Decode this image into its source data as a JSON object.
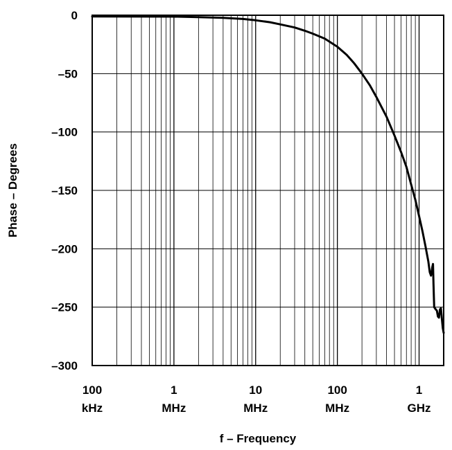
{
  "chart_data": {
    "type": "line",
    "title": "",
    "xlabel": "f – Frequency",
    "ylabel": "Phase – Degrees",
    "xscale": "log",
    "xlim_hz": [
      100000,
      2000000000
    ],
    "ylim": [
      -300,
      0
    ],
    "grid": true,
    "legend": "none",
    "x_ticks": [
      {
        "value": 100000,
        "line1": "100",
        "line2": "kHz"
      },
      {
        "value": 1000000,
        "line1": "1",
        "line2": "MHz"
      },
      {
        "value": 10000000,
        "line1": "10",
        "line2": "MHz"
      },
      {
        "value": 100000000,
        "line1": "100",
        "line2": "MHz"
      },
      {
        "value": 1000000000,
        "line1": "1",
        "line2": "GHz"
      }
    ],
    "y_ticks": [
      {
        "value": 0,
        "label": "0"
      },
      {
        "value": -50,
        "label": "–50"
      },
      {
        "value": -100,
        "label": "–100"
      },
      {
        "value": -150,
        "label": "–150"
      },
      {
        "value": -200,
        "label": "–200"
      },
      {
        "value": -250,
        "label": "–250"
      },
      {
        "value": -300,
        "label": "–300"
      }
    ],
    "series": [
      {
        "line_color": "#000000",
        "points": [
          [
            100000,
            -1.0
          ],
          [
            1000000,
            -1.2
          ],
          [
            2000000,
            -1.6
          ],
          [
            4000000,
            -2.2
          ],
          [
            7000000,
            -3.2
          ],
          [
            10000000,
            -4.3
          ],
          [
            15000000,
            -6.0
          ],
          [
            20000000,
            -7.8
          ],
          [
            30000000,
            -10.5
          ],
          [
            40000000,
            -13.3
          ],
          [
            50000000,
            -15.8
          ],
          [
            70000000,
            -20
          ],
          [
            100000000,
            -27
          ],
          [
            130000000,
            -34
          ],
          [
            160000000,
            -41
          ],
          [
            200000000,
            -50
          ],
          [
            250000000,
            -60
          ],
          [
            300000000,
            -70
          ],
          [
            400000000,
            -87
          ],
          [
            500000000,
            -103
          ],
          [
            600000000,
            -117
          ],
          [
            700000000,
            -130
          ],
          [
            800000000,
            -145
          ],
          [
            900000000,
            -158
          ],
          [
            1000000000,
            -172
          ],
          [
            1100000000,
            -185
          ],
          [
            1200000000,
            -198
          ],
          [
            1300000000,
            -211
          ],
          [
            1350000000,
            -220
          ],
          [
            1400000000,
            -223
          ],
          [
            1450000000,
            -216
          ],
          [
            1480000000,
            -213
          ],
          [
            1500000000,
            -230
          ],
          [
            1530000000,
            -250
          ],
          [
            1600000000,
            -252
          ],
          [
            1650000000,
            -253
          ],
          [
            1700000000,
            -258
          ],
          [
            1750000000,
            -259
          ],
          [
            1800000000,
            -252
          ],
          [
            1850000000,
            -251
          ],
          [
            1900000000,
            -260
          ],
          [
            1950000000,
            -268
          ],
          [
            2000000000,
            -272
          ]
        ]
      }
    ]
  }
}
